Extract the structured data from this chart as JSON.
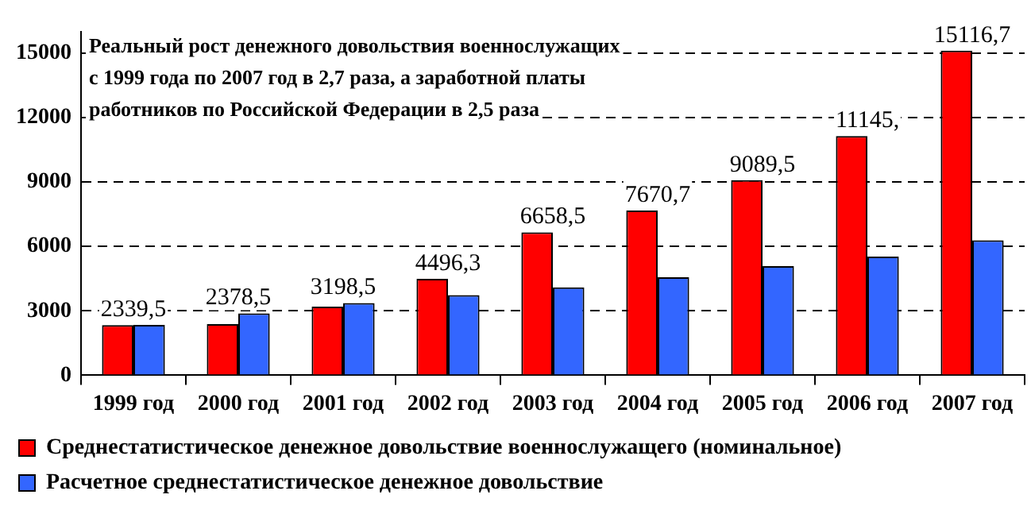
{
  "chart_data": {
    "type": "bar",
    "categories": [
      "1999 год",
      "2000 год",
      "2001 год",
      "2002 год",
      "2003 год",
      "2004 год",
      "2005 год",
      "2006 год",
      "2007 год"
    ],
    "series": [
      {
        "name": "Среднестатистическое денежное довольствие военнослужащего (номинальное)",
        "color": "#ff0000",
        "values": [
          2339.5,
          2378.5,
          3198.5,
          4496.3,
          6658.5,
          7670.7,
          9089.5,
          11145,
          15116.7
        ],
        "value_labels": [
          "2339,5",
          "2378,5",
          "3198,5",
          "4496,3",
          "6658,5",
          "7670,7",
          "9089,5",
          "11145,",
          "15116,7"
        ]
      },
      {
        "name": "Расчетное среднестатистическое денежное довольствие",
        "color": "#3366ff",
        "values": [
          2350,
          2880,
          3360,
          3730,
          4090,
          4570,
          5080,
          5530,
          6290
        ]
      }
    ],
    "ylim": [
      0,
      16000
    ],
    "yticks": [
      0,
      3000,
      6000,
      9000,
      12000,
      15000
    ],
    "grid": "y",
    "line_style": "dashed",
    "legend": "bottom",
    "annotations": [
      "Реальный рост денежного довольствия военнослужащих\nс 1999 года по 2007 год в 2,7 раза, а заработной платы\nработников по Российской Федерации в 2,5 раза"
    ]
  }
}
